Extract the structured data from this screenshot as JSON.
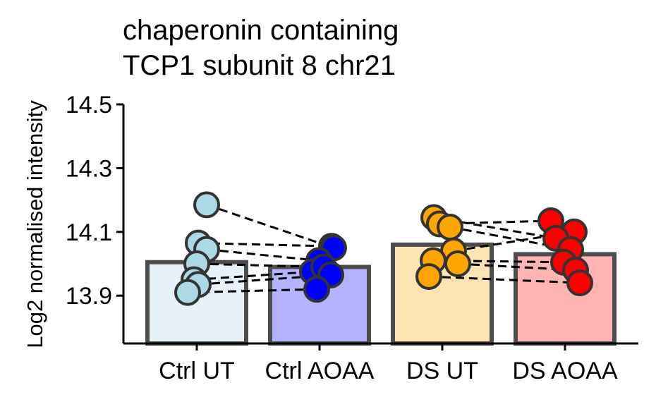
{
  "chart_data": {
    "type": "bar",
    "title_lines": [
      "chaperonin containing",
      "TCP1 subunit 8 chr21"
    ],
    "xlabel": "",
    "ylabel": "Log2 normalised intensity",
    "ylim": [
      13.75,
      14.5
    ],
    "yticks": [
      "13.9",
      "14.1",
      "14.3",
      "14.5"
    ],
    "grid": false,
    "categories": [
      "Ctrl UT",
      "Ctrl AOAA",
      "DS UT",
      "DS AOAA"
    ],
    "values": [
      14.005,
      13.99,
      14.06,
      14.03
    ],
    "bar_colors": [
      "#e6f2f8",
      "#b3b3ff",
      "#fde4b4",
      "#ffb3b3"
    ],
    "point_colors": [
      "#add8e6",
      "#0000ff",
      "#ffa500",
      "#ff0000"
    ],
    "points": [
      [
        14.185,
        14.065,
        14.045,
        14.0,
        13.95,
        13.935,
        13.91
      ],
      [
        14.055,
        14.05,
        14.01,
        13.975,
        13.99,
        13.965,
        13.92
      ],
      [
        14.145,
        14.125,
        14.115,
        14.04,
        14.01,
        14.0,
        13.96
      ],
      [
        14.135,
        14.1,
        14.08,
        14.045,
        14.005,
        13.98,
        13.94
      ]
    ],
    "pairs": [
      {
        "from": [
          0,
          0
        ],
        "to": [
          1,
          1
        ]
      },
      {
        "from": [
          0,
          1
        ],
        "to": [
          1,
          0
        ]
      },
      {
        "from": [
          0,
          2
        ],
        "to": [
          1,
          2
        ]
      },
      {
        "from": [
          0,
          3
        ],
        "to": [
          1,
          4
        ]
      },
      {
        "from": [
          0,
          4
        ],
        "to": [
          1,
          3
        ]
      },
      {
        "from": [
          0,
          5
        ],
        "to": [
          1,
          5
        ]
      },
      {
        "from": [
          0,
          6
        ],
        "to": [
          1,
          6
        ]
      },
      {
        "from": [
          2,
          0
        ],
        "to": [
          3,
          2
        ]
      },
      {
        "from": [
          2,
          1
        ],
        "to": [
          3,
          0
        ]
      },
      {
        "from": [
          2,
          2
        ],
        "to": [
          3,
          3
        ]
      },
      {
        "from": [
          2,
          3
        ],
        "to": [
          3,
          1
        ]
      },
      {
        "from": [
          2,
          4
        ],
        "to": [
          3,
          4
        ]
      },
      {
        "from": [
          2,
          5
        ],
        "to": [
          3,
          5
        ]
      },
      {
        "from": [
          2,
          6
        ],
        "to": [
          3,
          6
        ]
      }
    ]
  }
}
